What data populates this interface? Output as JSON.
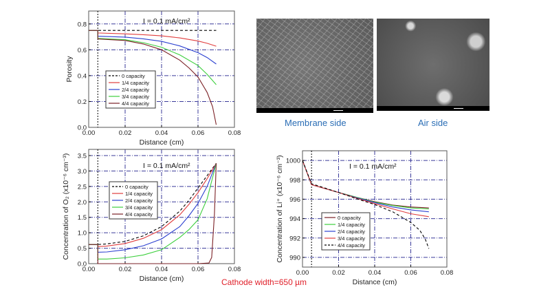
{
  "images": {
    "membrane": {
      "caption": "Membrane side"
    },
    "air": {
      "caption": "Air side"
    }
  },
  "footnote": "Cathode width=650 µm",
  "chart_data": [
    {
      "type": "line",
      "title": "",
      "annotation": "I = 0.1 mA/cm²",
      "xlabel": "Distance (cm)",
      "ylabel": "Porosity",
      "xlim": [
        0,
        0.08
      ],
      "ylim": [
        0,
        0.9
      ],
      "xticks": [
        "0.00",
        "0.02",
        "0.04",
        "0.06",
        "0.08"
      ],
      "xtick_values": [
        0,
        0.02,
        0.04,
        0.06,
        0.08
      ],
      "yticks": [
        "0.0",
        "0.2",
        "0.4",
        "0.6",
        "0.8"
      ],
      "ytick_values": [
        0,
        0.2,
        0.4,
        0.6,
        0.8
      ],
      "grid": true,
      "marker_line_x": 0.005,
      "legend_placement": "center-left",
      "series": [
        {
          "name": "0 capacity",
          "color": "#000000",
          "dash": true,
          "x": [
            0,
            0.07
          ],
          "y": [
            0.75,
            0.75
          ]
        },
        {
          "name": "1/4 capacity",
          "color": "#e03c3c",
          "x": [
            0,
            0.005,
            0.005,
            0.02,
            0.03,
            0.04,
            0.05,
            0.06,
            0.065,
            0.07
          ],
          "y": [
            0.75,
            0.75,
            0.73,
            0.723,
            0.717,
            0.708,
            0.692,
            0.668,
            0.65,
            0.628
          ]
        },
        {
          "name": "2/4 capacity",
          "color": "#2a3fd0",
          "x": [
            0,
            0.005,
            0.005,
            0.02,
            0.03,
            0.04,
            0.05,
            0.06,
            0.065,
            0.07
          ],
          "y": [
            0.75,
            0.75,
            0.705,
            0.698,
            0.685,
            0.665,
            0.63,
            0.578,
            0.54,
            0.49
          ]
        },
        {
          "name": "3/4 capacity",
          "color": "#3ccf3c",
          "x": [
            0,
            0.005,
            0.005,
            0.02,
            0.03,
            0.04,
            0.05,
            0.06,
            0.065,
            0.07
          ],
          "y": [
            0.75,
            0.75,
            0.688,
            0.678,
            0.655,
            0.62,
            0.56,
            0.478,
            0.41,
            0.33
          ]
        },
        {
          "name": "4/4 capacity",
          "color": "#7a1f24",
          "x": [
            0,
            0.005,
            0.005,
            0.02,
            0.03,
            0.04,
            0.05,
            0.055,
            0.06,
            0.065,
            0.068,
            0.07
          ],
          "y": [
            0.75,
            0.75,
            0.684,
            0.672,
            0.645,
            0.6,
            0.52,
            0.46,
            0.39,
            0.27,
            0.16,
            0.02
          ]
        }
      ]
    },
    {
      "type": "line",
      "title": "",
      "annotation": "I = 0.1 mA/cm²",
      "xlabel": "Distance (cm)",
      "ylabel": "Concentration of O₂ (x10⁻⁶ cm⁻³)",
      "xlim": [
        0,
        0.08
      ],
      "ylim": [
        0,
        3.7
      ],
      "xticks": [
        "0.00",
        "0.02",
        "0.04",
        "0.06",
        "0.08"
      ],
      "xtick_values": [
        0,
        0.02,
        0.04,
        0.06,
        0.08
      ],
      "yticks": [
        "0.0",
        "0.5",
        "1.0",
        "1.5",
        "2.0",
        "2.5",
        "3.0",
        "3.5"
      ],
      "ytick_values": [
        0,
        0.5,
        1,
        1.5,
        2,
        2.5,
        3,
        3.5
      ],
      "grid": true,
      "marker_line_x": 0.005,
      "legend_placement": "top-left",
      "series": [
        {
          "name": "0 capacity",
          "color": "#000000",
          "dash": true,
          "x": [
            0,
            0.005,
            0.005,
            0.01,
            0.02,
            0.03,
            0.04,
            0.05,
            0.055,
            0.06,
            0.065,
            0.07
          ],
          "y": [
            0.62,
            0.62,
            0.62,
            0.64,
            0.72,
            0.9,
            1.2,
            1.7,
            2.05,
            2.45,
            2.85,
            3.25
          ]
        },
        {
          "name": "1/4 capacity",
          "color": "#e03c3c",
          "x": [
            0,
            0.005,
            0.005,
            0.01,
            0.02,
            0.03,
            0.04,
            0.05,
            0.055,
            0.06,
            0.065,
            0.07
          ],
          "y": [
            0.62,
            0.62,
            0.55,
            0.57,
            0.65,
            0.82,
            1.1,
            1.58,
            1.92,
            2.3,
            2.75,
            3.25
          ]
        },
        {
          "name": "2/4 capacity",
          "color": "#2a3fd0",
          "x": [
            0,
            0.005,
            0.005,
            0.01,
            0.02,
            0.03,
            0.04,
            0.05,
            0.055,
            0.06,
            0.065,
            0.07
          ],
          "y": [
            0.62,
            0.62,
            0.37,
            0.38,
            0.45,
            0.58,
            0.8,
            1.2,
            1.55,
            1.95,
            2.5,
            3.25
          ]
        },
        {
          "name": "3/4 capacity",
          "color": "#3ccf3c",
          "x": [
            0,
            0.005,
            0.005,
            0.01,
            0.02,
            0.03,
            0.04,
            0.05,
            0.055,
            0.06,
            0.065,
            0.07
          ],
          "y": [
            0.62,
            0.62,
            0.15,
            0.15,
            0.19,
            0.28,
            0.45,
            0.85,
            1.1,
            1.42,
            2.1,
            3.25
          ]
        },
        {
          "name": "4/4 capacity",
          "color": "#7a1f24",
          "x": [
            0,
            0.005,
            0.005,
            0.02,
            0.04,
            0.06,
            0.066,
            0.0675,
            0.069,
            0.07
          ],
          "y": [
            0.62,
            0.62,
            0,
            0,
            0,
            0,
            0.02,
            0.2,
            1.6,
            3.25
          ]
        }
      ]
    },
    {
      "type": "line",
      "title": "",
      "annotation": "I = 0.1 mA/cm²",
      "xlabel": "Distance (cm)",
      "ylabel": "Concentration of Li⁺ (x10⁻⁶ cm⁻³)",
      "xlim": [
        0,
        0.08
      ],
      "ylim": [
        989,
        1001
      ],
      "xticks": [
        "0.00",
        "0.02",
        "0.04",
        "0.06",
        "0.08"
      ],
      "xtick_values": [
        0,
        0.02,
        0.04,
        0.06,
        0.08
      ],
      "yticks": [
        "990",
        "992",
        "994",
        "996",
        "998",
        "1000"
      ],
      "ytick_values": [
        990,
        992,
        994,
        996,
        998,
        1000
      ],
      "grid": true,
      "marker_line_x": 0.005,
      "legend_placement": "bottom-left",
      "series": [
        {
          "name": "0 capacity",
          "color": "#7a1f24",
          "x": [
            0,
            0.005,
            0.02,
            0.03,
            0.04,
            0.05,
            0.06,
            0.07
          ],
          "y": [
            1000,
            997.5,
            996.7,
            996.2,
            995.75,
            995.4,
            995.2,
            995.1
          ]
        },
        {
          "name": "1/4 capacity",
          "color": "#3ccf3c",
          "x": [
            0,
            0.005,
            0.02,
            0.03,
            0.04,
            0.05,
            0.06,
            0.07
          ],
          "y": [
            1000,
            997.5,
            996.7,
            996.2,
            995.7,
            995.35,
            995.1,
            995.0
          ]
        },
        {
          "name": "2/4 capacity",
          "color": "#2a3fd0",
          "x": [
            0,
            0.005,
            0.02,
            0.03,
            0.04,
            0.05,
            0.06,
            0.07
          ],
          "y": [
            1000,
            997.5,
            996.7,
            996.15,
            995.65,
            995.2,
            994.9,
            994.7
          ]
        },
        {
          "name": "3/4 capacity",
          "color": "#e03c3c",
          "x": [
            0,
            0.005,
            0.02,
            0.03,
            0.04,
            0.05,
            0.06,
            0.07
          ],
          "y": [
            1000,
            997.5,
            996.7,
            996.1,
            995.55,
            995.0,
            994.5,
            994.2
          ]
        },
        {
          "name": "4/4 capacity",
          "color": "#000000",
          "dash": true,
          "x": [
            0,
            0.005,
            0.02,
            0.03,
            0.04,
            0.05,
            0.06,
            0.065,
            0.068,
            0.07
          ],
          "y": [
            1000,
            997.6,
            996.7,
            996.05,
            995.45,
            994.7,
            993.6,
            992.8,
            991.9,
            990.9
          ]
        }
      ]
    }
  ]
}
